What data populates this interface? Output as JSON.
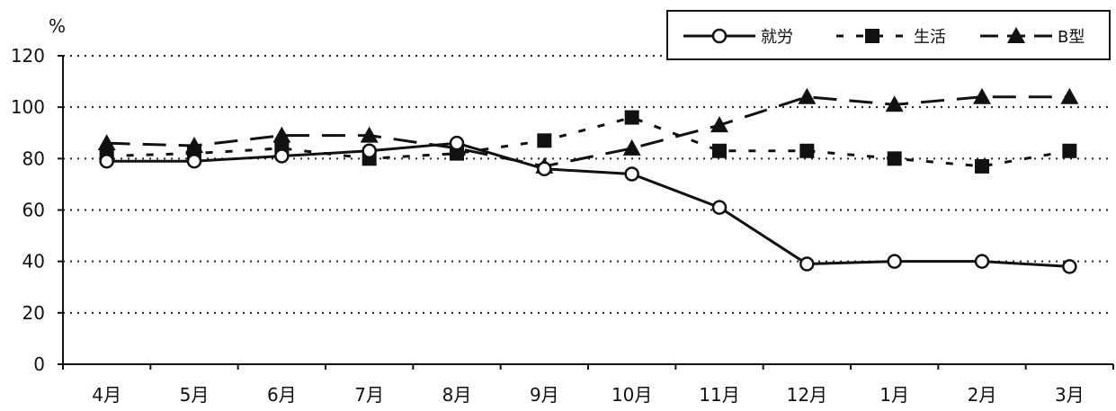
{
  "chart_data": {
    "type": "line",
    "unit_label": "%",
    "categories": [
      "4月",
      "5月",
      "6月",
      "7月",
      "8月",
      "9月",
      "10月",
      "11月",
      "12月",
      "1月",
      "2月",
      "3月"
    ],
    "yticks": [
      "0",
      "20",
      "40",
      "60",
      "80",
      "100",
      "120"
    ],
    "ylim": [
      0,
      120
    ],
    "grid": "horizontal-dotted",
    "legend_placement": "top-right",
    "series": [
      {
        "name": "就労",
        "marker": "circle",
        "line": "solid",
        "color": "#111111",
        "values": [
          79,
          79,
          81,
          83,
          86,
          76,
          74,
          61,
          39,
          40,
          40,
          38
        ]
      },
      {
        "name": "生活",
        "marker": "square",
        "line": "dotted",
        "color": "#111111",
        "values": [
          81,
          82,
          84,
          80,
          82,
          87,
          96,
          83,
          83,
          80,
          77,
          83
        ]
      },
      {
        "name": "B型",
        "marker": "triangle",
        "line": "dashed",
        "color": "#111111",
        "values": [
          86,
          85,
          89,
          89,
          84,
          77,
          84,
          93,
          104,
          101,
          104,
          104
        ]
      }
    ]
  }
}
